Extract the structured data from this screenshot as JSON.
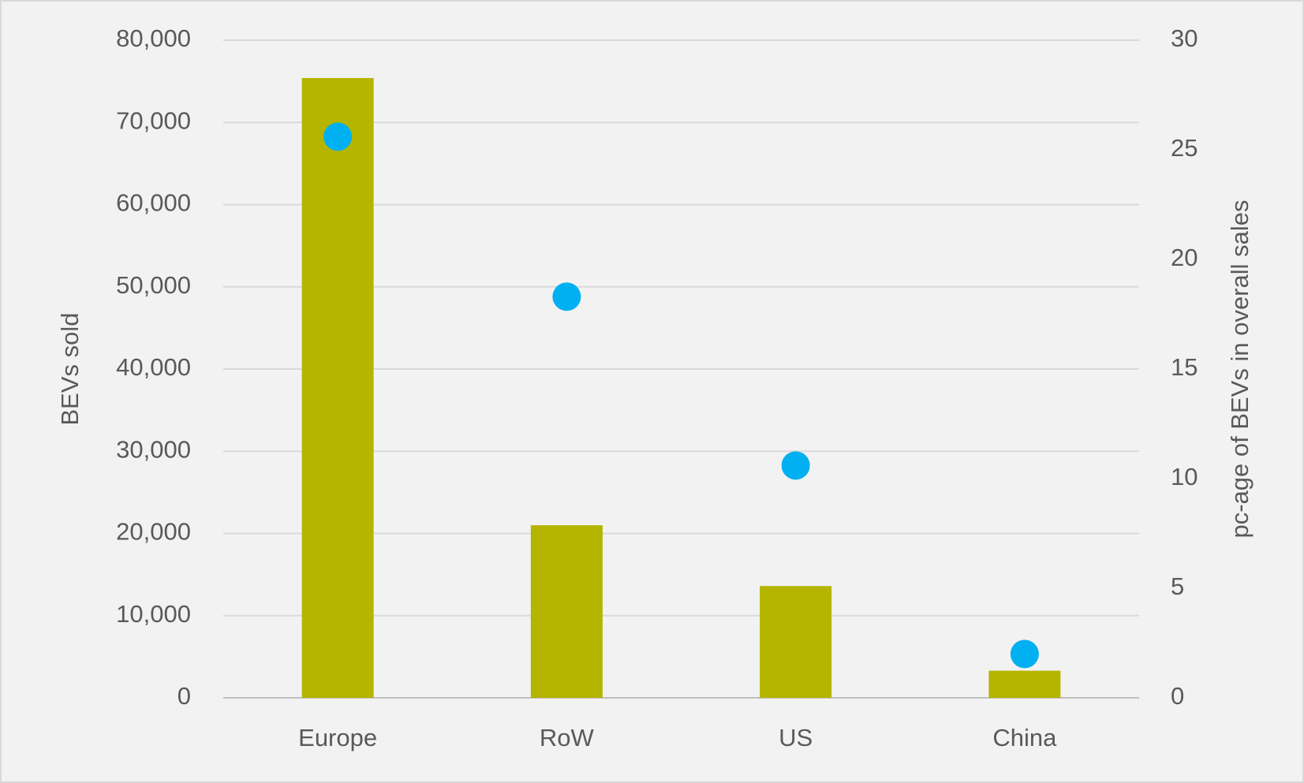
{
  "chart_data": {
    "type": "bar",
    "categories": [
      "Europe",
      "RoW",
      "US",
      "China"
    ],
    "series": [
      {
        "type": "bar",
        "color": "#b5b500",
        "values": [
          75400,
          21000,
          13600,
          3300
        ]
      },
      {
        "type": "scatter",
        "axis": "y2",
        "color": "#00b0f0",
        "values": [
          25.6,
          18.3,
          10.6,
          2.0
        ]
      }
    ],
    "ylabel": "BEVs sold",
    "y2label": "pc-age of BEVs in overall sales",
    "ylim": [
      0,
      80000
    ],
    "yticks": [
      0,
      {
        "value": 10000,
        "label": "10,000"
      },
      {
        "value": 20000,
        "label": "20,000"
      },
      {
        "value": 30000,
        "label": "30,000"
      },
      {
        "value": 40000,
        "label": "40,000"
      },
      {
        "value": 50000,
        "label": "50,000"
      },
      {
        "value": 60000,
        "label": "60,000"
      },
      {
        "value": 70000,
        "label": "70,000"
      },
      {
        "value": 80000,
        "label": "80,000"
      }
    ],
    "y2lim": [
      0,
      30
    ],
    "y2ticks": [
      0,
      5,
      10,
      15,
      20,
      25,
      30
    ],
    "grid": true
  }
}
